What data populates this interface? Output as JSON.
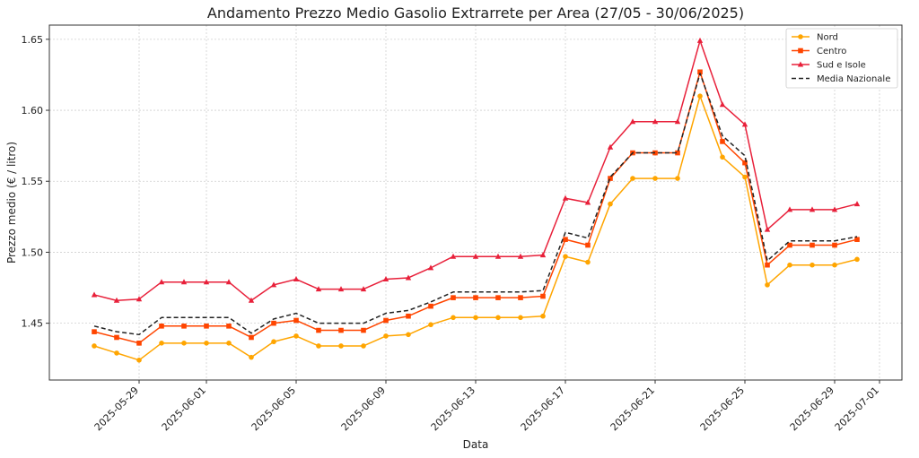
{
  "chart_data": {
    "type": "line",
    "title": "Andamento Prezzo Medio Gasolio Extrarrete per Area (27/05 - 30/06/2025)",
    "xlabel": "Data",
    "ylabel": "Prezzo medio (€ / litro)",
    "ylim": [
      1.41,
      1.66
    ],
    "xlim": [
      "2025-05-25",
      "2025-07-02"
    ],
    "grid": true,
    "legend_position": "top-right",
    "x_ticks": [
      "2025-05-29",
      "2025-06-01",
      "2025-06-05",
      "2025-06-09",
      "2025-06-13",
      "2025-06-17",
      "2025-06-21",
      "2025-06-25",
      "2025-06-29",
      "2025-07-01"
    ],
    "y_ticks": [
      "1.45",
      "1.50",
      "1.55",
      "1.60",
      "1.65"
    ],
    "x": [
      "2025-05-27",
      "2025-05-28",
      "2025-05-29",
      "2025-05-30",
      "2025-05-31",
      "2025-06-01",
      "2025-06-02",
      "2025-06-03",
      "2025-06-04",
      "2025-06-05",
      "2025-06-06",
      "2025-06-07",
      "2025-06-08",
      "2025-06-09",
      "2025-06-10",
      "2025-06-11",
      "2025-06-12",
      "2025-06-13",
      "2025-06-14",
      "2025-06-15",
      "2025-06-16",
      "2025-06-17",
      "2025-06-18",
      "2025-06-19",
      "2025-06-20",
      "2025-06-21",
      "2025-06-22",
      "2025-06-23",
      "2025-06-24",
      "2025-06-25",
      "2025-06-26",
      "2025-06-27",
      "2025-06-28",
      "2025-06-29",
      "2025-06-30"
    ],
    "series": [
      {
        "name": "Nord",
        "color": "#FFA500",
        "marker": "circle",
        "dashed": false,
        "values": [
          1.434,
          1.429,
          1.424,
          1.436,
          1.436,
          1.436,
          1.436,
          1.426,
          1.437,
          1.441,
          1.434,
          1.434,
          1.434,
          1.441,
          1.442,
          1.449,
          1.454,
          1.454,
          1.454,
          1.454,
          1.455,
          1.497,
          1.493,
          1.534,
          1.552,
          1.552,
          1.552,
          1.61,
          1.567,
          1.553,
          1.477,
          1.491,
          1.491,
          1.491,
          1.495
        ]
      },
      {
        "name": "Centro",
        "color": "#FF4500",
        "marker": "square",
        "dashed": false,
        "values": [
          1.444,
          1.44,
          1.436,
          1.448,
          1.448,
          1.448,
          1.448,
          1.44,
          1.45,
          1.452,
          1.445,
          1.445,
          1.445,
          1.452,
          1.455,
          1.462,
          1.468,
          1.468,
          1.468,
          1.468,
          1.469,
          1.509,
          1.505,
          1.552,
          1.57,
          1.57,
          1.57,
          1.627,
          1.578,
          1.563,
          1.491,
          1.505,
          1.505,
          1.505,
          1.509
        ]
      },
      {
        "name": "Sud e Isole",
        "color": "#E8203A",
        "marker": "triangle",
        "dashed": false,
        "values": [
          1.47,
          1.466,
          1.467,
          1.479,
          1.479,
          1.479,
          1.479,
          1.466,
          1.477,
          1.481,
          1.474,
          1.474,
          1.474,
          1.481,
          1.482,
          1.489,
          1.497,
          1.497,
          1.497,
          1.497,
          1.498,
          1.538,
          1.535,
          1.574,
          1.592,
          1.592,
          1.592,
          1.649,
          1.604,
          1.59,
          1.516,
          1.53,
          1.53,
          1.53,
          1.534
        ]
      },
      {
        "name": "Media Nazionale",
        "color": "#222222",
        "marker": "none",
        "dashed": true,
        "values": [
          1.448,
          1.444,
          1.442,
          1.454,
          1.454,
          1.454,
          1.454,
          1.443,
          1.453,
          1.457,
          1.45,
          1.45,
          1.45,
          1.457,
          1.459,
          1.465,
          1.472,
          1.472,
          1.472,
          1.472,
          1.473,
          1.514,
          1.51,
          1.553,
          1.57,
          1.57,
          1.57,
          1.626,
          1.582,
          1.568,
          1.494,
          1.508,
          1.508,
          1.508,
          1.511
        ]
      }
    ]
  }
}
